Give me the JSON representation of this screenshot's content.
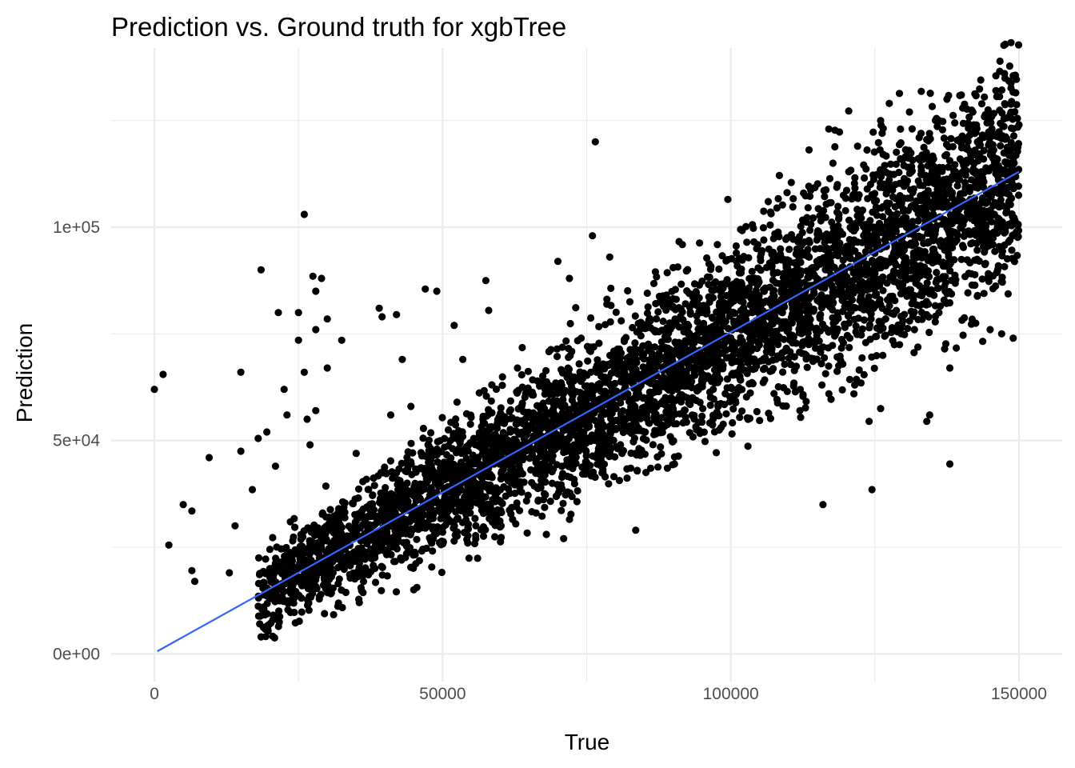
{
  "chart_data": {
    "type": "scatter",
    "title": "Prediction vs. Ground truth for xgbTree",
    "xlabel": "True",
    "ylabel": "Prediction",
    "xlim": [
      -7500,
      157500
    ],
    "ylim": [
      -6500,
      142000
    ],
    "x_ticks": [
      0,
      50000,
      100000,
      150000
    ],
    "x_tick_labels": [
      "0",
      "50000",
      "100000",
      "150000"
    ],
    "y_ticks": [
      0,
      50000,
      100000
    ],
    "y_tick_labels": [
      "0e+00",
      "5e+04",
      "1e+05"
    ],
    "x_minor_ticks": [
      25000,
      75000,
      125000
    ],
    "y_minor_ticks": [
      25000,
      75000,
      125000
    ],
    "grid": true,
    "fit_line": {
      "x": [
        500,
        150000
      ],
      "y": [
        600,
        113000
      ],
      "color": "#3366ff"
    },
    "dense_band": {
      "x_range": [
        18000,
        150000
      ],
      "slope": 0.75,
      "intercept": 250,
      "spread": 7000
    },
    "outliers": [
      {
        "x": 0,
        "y": 62000
      },
      {
        "x": 1500,
        "y": 65500
      },
      {
        "x": 2500,
        "y": 25500
      },
      {
        "x": 5000,
        "y": 35000
      },
      {
        "x": 6500,
        "y": 33500
      },
      {
        "x": 6500,
        "y": 19500
      },
      {
        "x": 7000,
        "y": 17000
      },
      {
        "x": 9500,
        "y": 46000
      },
      {
        "x": 13000,
        "y": 19000
      },
      {
        "x": 14000,
        "y": 30000
      },
      {
        "x": 15000,
        "y": 47500
      },
      {
        "x": 15000,
        "y": 66000
      },
      {
        "x": 17000,
        "y": 38500
      },
      {
        "x": 18000,
        "y": 50500
      },
      {
        "x": 18500,
        "y": 90000
      },
      {
        "x": 19500,
        "y": 52000
      },
      {
        "x": 21000,
        "y": 44000
      },
      {
        "x": 21500,
        "y": 80000
      },
      {
        "x": 22500,
        "y": 62000
      },
      {
        "x": 23000,
        "y": 56000
      },
      {
        "x": 25000,
        "y": 80000
      },
      {
        "x": 25000,
        "y": 73500
      },
      {
        "x": 26000,
        "y": 66000
      },
      {
        "x": 26000,
        "y": 103000
      },
      {
        "x": 27500,
        "y": 88500
      },
      {
        "x": 28000,
        "y": 85000
      },
      {
        "x": 28000,
        "y": 76000
      },
      {
        "x": 29000,
        "y": 88000
      },
      {
        "x": 30000,
        "y": 78500
      },
      {
        "x": 30000,
        "y": 67000
      },
      {
        "x": 26500,
        "y": 55000
      },
      {
        "x": 27000,
        "y": 49000
      },
      {
        "x": 28000,
        "y": 57000
      },
      {
        "x": 32500,
        "y": 73500
      },
      {
        "x": 35000,
        "y": 47000
      },
      {
        "x": 39500,
        "y": 79000
      },
      {
        "x": 42000,
        "y": 79500
      },
      {
        "x": 41000,
        "y": 56000
      },
      {
        "x": 39000,
        "y": 81000
      },
      {
        "x": 43000,
        "y": 69000
      },
      {
        "x": 44500,
        "y": 58000
      },
      {
        "x": 47000,
        "y": 85500
      },
      {
        "x": 49000,
        "y": 85000
      },
      {
        "x": 52500,
        "y": 59000
      },
      {
        "x": 52000,
        "y": 77000
      },
      {
        "x": 53500,
        "y": 69000
      },
      {
        "x": 57500,
        "y": 87500
      },
      {
        "x": 57000,
        "y": 55000
      },
      {
        "x": 58000,
        "y": 80500
      },
      {
        "x": 63000,
        "y": 67000
      },
      {
        "x": 70000,
        "y": 92000
      },
      {
        "x": 72000,
        "y": 88000
      },
      {
        "x": 76500,
        "y": 120000
      },
      {
        "x": 76000,
        "y": 98000
      },
      {
        "x": 79000,
        "y": 93000
      },
      {
        "x": 45000,
        "y": 15000
      },
      {
        "x": 68000,
        "y": 28000
      },
      {
        "x": 71000,
        "y": 27000
      },
      {
        "x": 83500,
        "y": 29000
      },
      {
        "x": 89000,
        "y": 43500
      },
      {
        "x": 99500,
        "y": 106500
      },
      {
        "x": 106500,
        "y": 106000
      },
      {
        "x": 108000,
        "y": 104500
      },
      {
        "x": 117000,
        "y": 123000
      },
      {
        "x": 118500,
        "y": 110000
      },
      {
        "x": 122000,
        "y": 119000
      },
      {
        "x": 126000,
        "y": 125000
      },
      {
        "x": 127500,
        "y": 129000
      },
      {
        "x": 131000,
        "y": 127000
      },
      {
        "x": 133000,
        "y": 122000
      },
      {
        "x": 136000,
        "y": 125000
      },
      {
        "x": 137500,
        "y": 130000
      },
      {
        "x": 140000,
        "y": 131000
      },
      {
        "x": 142000,
        "y": 127000
      },
      {
        "x": 144000,
        "y": 130500
      },
      {
        "x": 146000,
        "y": 132000
      },
      {
        "x": 147500,
        "y": 136000
      },
      {
        "x": 149000,
        "y": 135500
      },
      {
        "x": 148500,
        "y": 126500
      },
      {
        "x": 150000,
        "y": 124000
      },
      {
        "x": 146000,
        "y": 135500
      },
      {
        "x": 134500,
        "y": 56000
      },
      {
        "x": 134000,
        "y": 54500
      },
      {
        "x": 124500,
        "y": 38500
      },
      {
        "x": 116000,
        "y": 35000
      },
      {
        "x": 138000,
        "y": 44500
      },
      {
        "x": 138000,
        "y": 67000
      },
      {
        "x": 124000,
        "y": 54500
      },
      {
        "x": 126000,
        "y": 57500
      },
      {
        "x": 145000,
        "y": 76000
      },
      {
        "x": 147000,
        "y": 75000
      },
      {
        "x": 149000,
        "y": 74000
      },
      {
        "x": 142500,
        "y": 77500
      },
      {
        "x": 121500,
        "y": 63000
      },
      {
        "x": 112000,
        "y": 57000
      },
      {
        "x": 107500,
        "y": 61000
      }
    ]
  }
}
